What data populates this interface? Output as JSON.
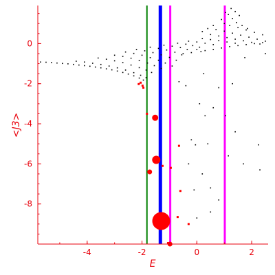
{
  "chart_data": {
    "type": "scatter",
    "title": "",
    "xlabel": "E",
    "ylabel": "<J3>",
    "xlim": [
      -5.8,
      2.6
    ],
    "ylim": [
      -10.0,
      1.9
    ],
    "x_ticks": [
      -4,
      -2,
      0,
      2
    ],
    "y_ticks": [
      0,
      -2,
      -4,
      -6,
      -8
    ],
    "x_tick_labels": [
      "-4",
      "-2",
      "0",
      "2"
    ],
    "y_tick_labels": [
      "0",
      "-2",
      "-4",
      "-6",
      "-8"
    ],
    "grid": false,
    "axis_color": "#e8000b",
    "vertical_lines": [
      {
        "x": -1.82,
        "color": "#008000",
        "width": "thin"
      },
      {
        "x": -1.33,
        "color": "#0000ff",
        "width": "thick"
      },
      {
        "x": -0.97,
        "color": "#ff00ff",
        "width": "medium"
      },
      {
        "x": 1.02,
        "color": "#ff00ff",
        "width": "medium"
      }
    ],
    "series": [
      {
        "color": "#000000",
        "points": [
          [
            -5.7,
            -0.92
          ],
          [
            -5.5,
            -0.93
          ],
          [
            -5.3,
            -0.95
          ],
          [
            -5.1,
            -0.97
          ],
          [
            -4.9,
            -0.99
          ],
          [
            -4.7,
            -1.01
          ],
          [
            -4.5,
            -1.04
          ],
          [
            -4.3,
            -1.07
          ],
          [
            -4.1,
            -1.1
          ],
          [
            -3.9,
            -1.13
          ],
          [
            -3.7,
            -1.17
          ],
          [
            -3.5,
            -1.21
          ],
          [
            -3.3,
            -1.26
          ],
          [
            -3.1,
            -1.31
          ],
          [
            -2.9,
            -1.37
          ],
          [
            -2.7,
            -1.44
          ],
          [
            -2.5,
            -1.52
          ],
          [
            -2.3,
            -1.61
          ],
          [
            -2.1,
            -1.72
          ],
          [
            -1.95,
            -1.82
          ],
          [
            -4.4,
            -0.88
          ],
          [
            -4.1,
            -0.92
          ],
          [
            -3.8,
            -0.98
          ],
          [
            -3.5,
            -1.04
          ],
          [
            -3.2,
            -1.12
          ],
          [
            -2.9,
            -1.21
          ],
          [
            -2.6,
            -1.32
          ],
          [
            -2.3,
            -1.45
          ],
          [
            -2.05,
            -1.58
          ],
          [
            -1.85,
            -1.7
          ],
          [
            -3.6,
            -0.72
          ],
          [
            -3.3,
            -0.78
          ],
          [
            -3.0,
            -0.86
          ],
          [
            -2.7,
            -0.95
          ],
          [
            -2.4,
            -1.07
          ],
          [
            -2.1,
            -1.2
          ],
          [
            -1.85,
            -1.32
          ],
          [
            -1.65,
            -1.44
          ],
          [
            -3.0,
            -0.58
          ],
          [
            -2.7,
            -0.64
          ],
          [
            -2.4,
            -0.73
          ],
          [
            -2.1,
            -0.84
          ],
          [
            -1.8,
            -0.97
          ],
          [
            -1.55,
            -1.1
          ],
          [
            -1.3,
            -1.24
          ],
          [
            -2.6,
            -0.42
          ],
          [
            -2.3,
            -0.49
          ],
          [
            -2.0,
            -0.58
          ],
          [
            -1.7,
            -0.7
          ],
          [
            -1.4,
            -0.83
          ],
          [
            -1.15,
            -0.97
          ],
          [
            -0.9,
            -1.12
          ],
          [
            -2.2,
            -0.3
          ],
          [
            -1.9,
            -0.36
          ],
          [
            -1.6,
            -0.45
          ],
          [
            -1.3,
            -0.56
          ],
          [
            -1.0,
            -0.69
          ],
          [
            -0.75,
            -0.83
          ],
          [
            -1.7,
            -0.18
          ],
          [
            -1.4,
            -0.24
          ],
          [
            -1.1,
            -0.32
          ],
          [
            -0.8,
            -0.43
          ],
          [
            -0.55,
            -0.56
          ],
          [
            -1.2,
            -0.08
          ],
          [
            -0.9,
            -0.13
          ],
          [
            -0.6,
            -0.2
          ],
          [
            -0.35,
            -0.3
          ],
          [
            -0.7,
            0.02
          ],
          [
            -0.4,
            -0.03
          ],
          [
            -0.15,
            -0.1
          ],
          [
            0.1,
            -0.18
          ],
          [
            -0.3,
            0.12
          ],
          [
            0.0,
            0.08
          ],
          [
            0.3,
            0.02
          ],
          [
            0.6,
            -0.05
          ],
          [
            0.2,
            0.25
          ],
          [
            0.5,
            0.2
          ],
          [
            0.8,
            0.15
          ],
          [
            1.1,
            0.08
          ],
          [
            1.4,
            0.02
          ],
          [
            0.5,
            0.45
          ],
          [
            0.8,
            0.38
          ],
          [
            1.1,
            0.3
          ],
          [
            1.4,
            0.22
          ],
          [
            1.7,
            0.14
          ],
          [
            2.0,
            0.06
          ],
          [
            2.3,
            -0.02
          ],
          [
            0.7,
            0.7
          ],
          [
            1.0,
            0.62
          ],
          [
            1.3,
            0.52
          ],
          [
            1.6,
            0.42
          ],
          [
            1.9,
            0.32
          ],
          [
            2.2,
            0.22
          ],
          [
            2.5,
            0.12
          ],
          [
            1.0,
            1.0
          ],
          [
            1.2,
            0.9
          ],
          [
            1.5,
            0.8
          ],
          [
            1.8,
            0.68
          ],
          [
            2.1,
            0.56
          ],
          [
            2.4,
            0.44
          ],
          [
            1.15,
            1.45
          ],
          [
            1.3,
            1.25
          ],
          [
            1.45,
            1.05
          ],
          [
            1.65,
            0.9
          ],
          [
            1.85,
            0.75
          ],
          [
            1.25,
            1.75
          ],
          [
            1.4,
            1.6
          ],
          [
            1.55,
            1.4
          ],
          [
            0.2,
            0.6
          ],
          [
            0.4,
            0.75
          ],
          [
            0.6,
            0.9
          ],
          [
            0.9,
            1.2
          ],
          [
            1.05,
            1.55
          ],
          [
            0.0,
            -0.3
          ],
          [
            0.3,
            -0.35
          ],
          [
            0.6,
            -0.3
          ],
          [
            0.9,
            -0.22
          ],
          [
            1.2,
            -0.15
          ],
          [
            1.5,
            -0.1
          ],
          [
            1.8,
            -0.05
          ],
          [
            2.1,
            0.0
          ],
          [
            2.4,
            0.05
          ],
          [
            -0.5,
            -0.5
          ],
          [
            -0.2,
            -0.45
          ],
          [
            0.15,
            -0.4
          ],
          [
            1.75,
            -0.7
          ],
          [
            2.5,
            -0.5
          ],
          [
            0.25,
            -1.5
          ],
          [
            0.8,
            -2.2
          ],
          [
            1.3,
            -2.0
          ],
          [
            -0.4,
            -2.1
          ],
          [
            -0.65,
            -1.9
          ],
          [
            0.1,
            -3.0
          ],
          [
            0.6,
            -3.2
          ],
          [
            0.3,
            -3.6
          ],
          [
            1.05,
            -3.6
          ],
          [
            1.4,
            -4.4
          ],
          [
            2.25,
            -5.05
          ],
          [
            -0.2,
            -4.8
          ],
          [
            -0.05,
            -5.05
          ],
          [
            0.4,
            -5.0
          ],
          [
            -0.3,
            -6.0
          ],
          [
            0.2,
            -6.5
          ],
          [
            1.15,
            -5.6
          ],
          [
            1.7,
            -6.0
          ],
          [
            2.3,
            -6.3
          ],
          [
            -0.1,
            -7.3
          ],
          [
            0.5,
            -7.2
          ],
          [
            0.8,
            -7.8
          ],
          [
            0.0,
            -8.7
          ],
          [
            0.5,
            -8.4
          ]
        ]
      },
      {
        "color": "#ff0000",
        "points": [
          [
            -2.05,
            -1.95
          ],
          [
            -1.98,
            -2.1
          ],
          [
            -2.12,
            -2.02
          ],
          [
            -1.95,
            -2.2
          ],
          [
            -1.82,
            -3.5
          ],
          [
            -1.5,
            -3.65
          ],
          [
            -1.55,
            -5.8
          ],
          [
            -1.25,
            -6.1
          ],
          [
            -1.72,
            -6.4
          ],
          [
            -0.65,
            -5.1
          ],
          [
            -0.95,
            -6.2
          ],
          [
            -0.6,
            -7.35
          ],
          [
            -0.7,
            -8.65
          ],
          [
            -0.3,
            -9.0
          ],
          [
            -1.3,
            -8.9
          ],
          [
            -1.05,
            -9.95
          ]
        ]
      }
    ],
    "bubbles": [
      {
        "x": -1.3,
        "y": -8.85,
        "size": "large"
      },
      {
        "x": -1.48,
        "y": -5.8,
        "size": "medium"
      },
      {
        "x": -1.52,
        "y": -3.7,
        "size": "small-medium"
      },
      {
        "x": -1.72,
        "y": -6.4,
        "size": "small"
      },
      {
        "x": -0.98,
        "y": -10.0,
        "size": "small"
      }
    ]
  }
}
